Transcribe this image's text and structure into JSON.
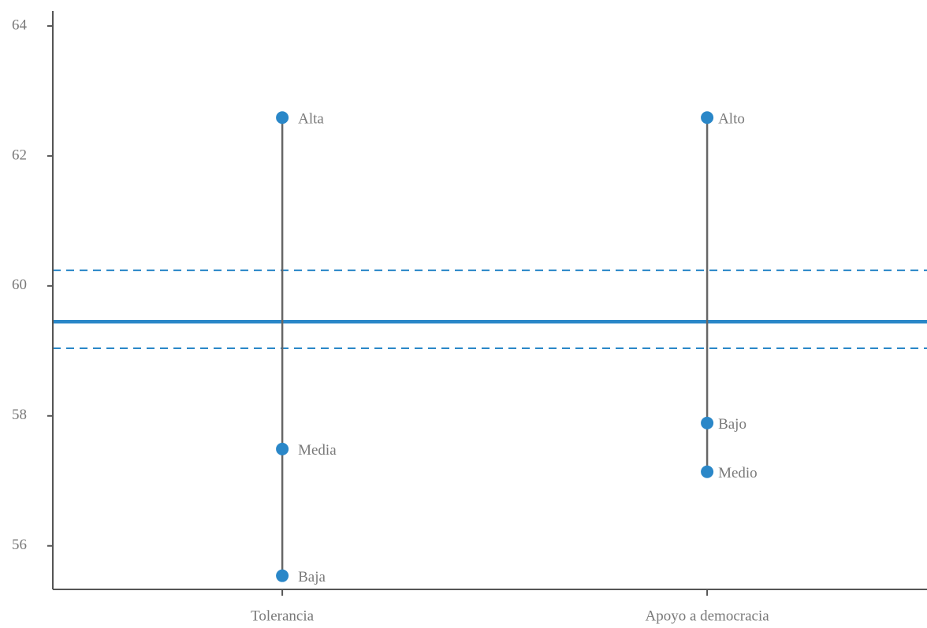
{
  "chart_data": {
    "type": "dot-range",
    "categories": [
      "Tolerancia",
      "Apoyo a democracia"
    ],
    "groups": [
      {
        "labels": [
          "Alta",
          "Media",
          "Baja"
        ],
        "values": [
          62.59,
          57.49,
          55.54
        ]
      },
      {
        "labels": [
          "Alto",
          "Bajo",
          "Medio"
        ],
        "values": [
          62.59,
          57.89,
          57.14
        ]
      }
    ],
    "color": "#2a87c8",
    "reference_line": 59.45,
    "reference_band": [
      59.04,
      60.24
    ],
    "ylim": [
      55.33,
      64.23
    ],
    "yticks": [
      56,
      58,
      60,
      62,
      64
    ]
  }
}
